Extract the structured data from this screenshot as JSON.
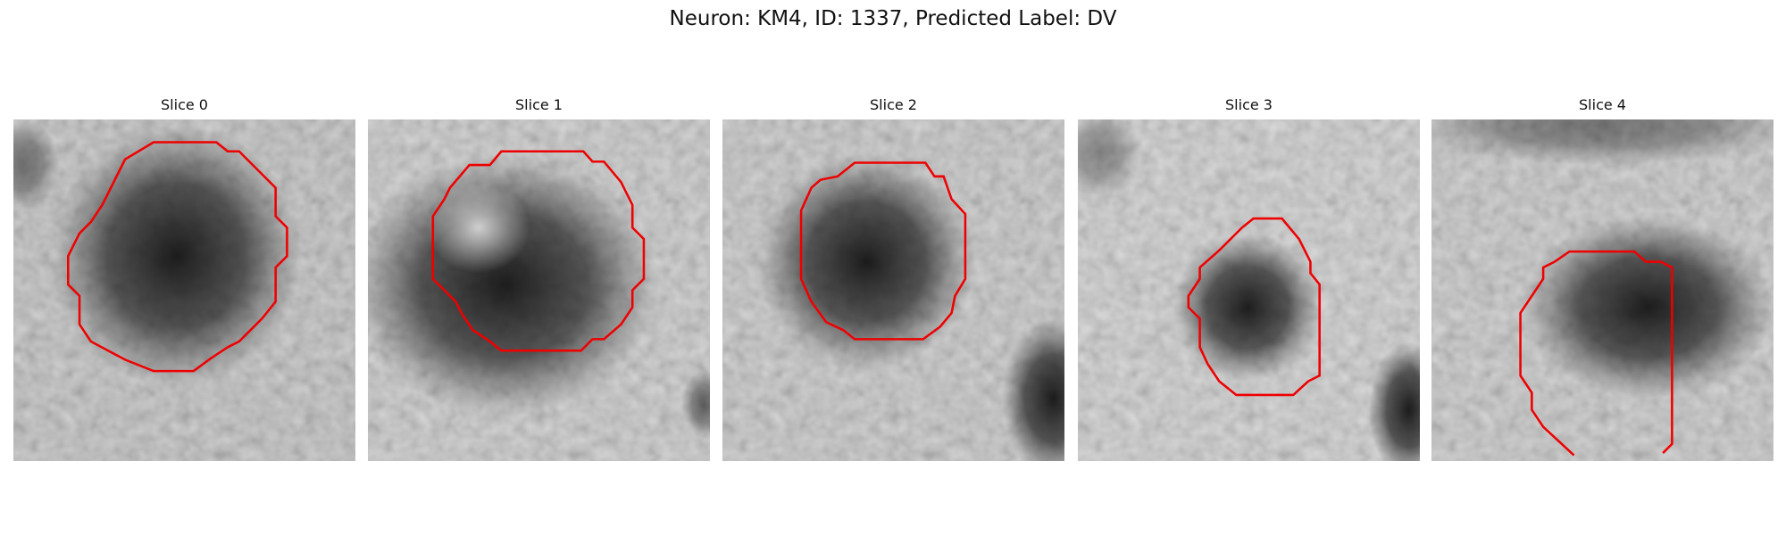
{
  "title": "Neuron: KM4, ID: 1337, Predicted Label: DV",
  "panels": [
    {
      "title": "Slice 0"
    },
    {
      "title": "Slice 1"
    },
    {
      "title": "Slice 2"
    },
    {
      "title": "Slice 3"
    },
    {
      "title": "Slice 4"
    }
  ]
}
